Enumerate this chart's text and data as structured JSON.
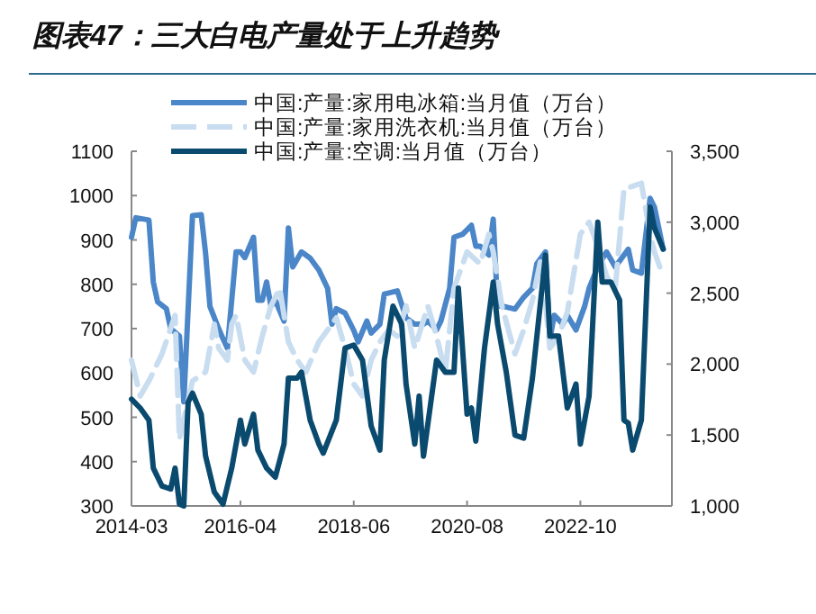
{
  "chart_data": {
    "type": "line",
    "title": "图表47：三大白电产量处于上升趋势",
    "xlim": [
      "2014-03",
      "2024-07"
    ],
    "xticks": [
      {
        "value": "2014-03",
        "label": "2014-03"
      },
      {
        "value": "2016-04",
        "label": "2016-04"
      },
      {
        "value": "2018-06",
        "label": "2018-06"
      },
      {
        "value": "2020-08",
        "label": "2020-08"
      },
      {
        "value": "2022-10",
        "label": "2022-10"
      }
    ],
    "ylim": [
      300,
      1100
    ],
    "yticks": [
      300,
      400,
      500,
      600,
      700,
      800,
      900,
      1000,
      1100
    ],
    "y2lim": [
      1000,
      3500
    ],
    "y2ticks": [
      {
        "value": 1000,
        "label": "1,000"
      },
      {
        "value": 1500,
        "label": "1,500"
      },
      {
        "value": 2000,
        "label": "2,000"
      },
      {
        "value": 2500,
        "label": "2,500"
      },
      {
        "value": 3000,
        "label": "3,000"
      },
      {
        "value": 3500,
        "label": "3,500"
      }
    ],
    "legend": "top",
    "grid": false,
    "series": [
      {
        "name": "中国:产量:家用电冰箱:当月值（万台）",
        "color": "#4a86c8",
        "line_style": "solid",
        "x": [
          "2014-03",
          "2014-04",
          "2014-07",
          "2014-08",
          "2014-09",
          "2014-11",
          "2014-12",
          "2015-02",
          "2015-03",
          "2015-05",
          "2015-07",
          "2015-08",
          "2015-09",
          "2015-11",
          "2015-12",
          "2016-01",
          "2016-03",
          "2016-04",
          "2016-05",
          "2016-07",
          "2016-08",
          "2016-09",
          "2016-10",
          "2016-11",
          "2016-12",
          "2017-02",
          "2017-03",
          "2017-04",
          "2017-06",
          "2017-08",
          "2017-10",
          "2017-12",
          "2018-01",
          "2018-02",
          "2018-04",
          "2018-06",
          "2018-07",
          "2018-09",
          "2018-10",
          "2018-12",
          "2019-01",
          "2019-04",
          "2019-06",
          "2019-08",
          "2019-10",
          "2019-11",
          "2020-01",
          "2020-02",
          "2020-04",
          "2020-05",
          "2020-07",
          "2020-09",
          "2020-10",
          "2020-11",
          "2021-01",
          "2021-02",
          "2021-03",
          "2021-04",
          "2021-07",
          "2021-09",
          "2021-11",
          "2021-12",
          "2022-02",
          "2022-03",
          "2022-04",
          "2022-06",
          "2022-07",
          "2022-09",
          "2022-11",
          "2022-12",
          "2023-02",
          "2023-04",
          "2023-06",
          "2023-09",
          "2023-10",
          "2023-12",
          "2024-02",
          "2024-03",
          "2024-05"
        ],
        "values": [
          906,
          950,
          945,
          805,
          760,
          745,
          700,
          683,
          535,
          955,
          957,
          870,
          750,
          700,
          677,
          656,
          873,
          873,
          860,
          906,
          764,
          764,
          805,
          751,
          764,
          717,
          927,
          839,
          873,
          859,
          832,
          791,
          710,
          745,
          735,
          696,
          670,
          717,
          690,
          710,
          778,
          785,
          724,
          710,
          710,
          717,
          697,
          717,
          791,
          906,
          913,
          933,
          886,
          886,
          866,
          947,
          751,
          751,
          744,
          771,
          791,
          846,
          873,
          676,
          730,
          710,
          730,
          697,
          751,
          791,
          839,
          873,
          839,
          879,
          832,
          825,
          994,
          974,
          879
        ]
      },
      {
        "name": "中国:产量:家用洗衣机:当月值（万台）",
        "color": "#c9ddf0",
        "line_style": "dashed",
        "x": [
          "2014-03",
          "2014-05",
          "2014-07",
          "2014-10",
          "2015-01",
          "2015-02",
          "2015-05",
          "2015-08",
          "2015-10",
          "2015-11",
          "2016-01",
          "2016-02",
          "2016-03",
          "2016-05",
          "2016-07",
          "2016-09",
          "2016-11",
          "2017-01",
          "2017-03",
          "2017-05",
          "2017-07",
          "2017-10",
          "2017-12",
          "2018-02",
          "2018-04",
          "2018-06",
          "2018-08",
          "2018-10",
          "2018-12",
          "2019-02",
          "2019-04",
          "2019-06",
          "2019-08",
          "2019-11",
          "2020-01",
          "2020-03",
          "2020-05",
          "2020-08",
          "2020-11",
          "2021-01",
          "2021-02",
          "2021-04",
          "2021-07",
          "2021-09",
          "2021-11",
          "2022-01",
          "2022-03",
          "2022-05",
          "2022-07",
          "2022-10",
          "2022-12",
          "2023-02",
          "2023-04",
          "2023-06",
          "2023-08",
          "2023-10",
          "2023-12",
          "2024-02",
          "2024-03",
          "2024-05"
        ],
        "values": [
          629,
          548,
          582,
          643,
          730,
          450,
          582,
          602,
          710,
          656,
          629,
          710,
          730,
          629,
          602,
          683,
          751,
          791,
          670,
          629,
          602,
          670,
          697,
          724,
          656,
          575,
          548,
          629,
          670,
          697,
          683,
          751,
          656,
          751,
          683,
          602,
          791,
          873,
          846,
          913,
          873,
          751,
          643,
          697,
          764,
          859,
          656,
          683,
          737,
          913,
          940,
          886,
          818,
          791,
          1015,
          1021,
          1028,
          913,
          873,
          818
        ]
      },
      {
        "name": "中国:产量:空调:当月值（万台）",
        "color": "#0b4a6f",
        "line_style": "solid",
        "axis": "y2",
        "x": [
          "2014-03",
          "2014-05",
          "2014-07",
          "2014-08",
          "2014-10",
          "2014-12",
          "2015-01",
          "2015-02",
          "2015-03",
          "2015-04",
          "2015-05",
          "2015-07",
          "2015-08",
          "2015-10",
          "2015-12",
          "2016-02",
          "2016-04",
          "2016-05",
          "2016-07",
          "2016-08",
          "2016-10",
          "2016-12",
          "2017-02",
          "2017-03",
          "2017-05",
          "2017-06",
          "2017-08",
          "2017-10",
          "2017-11",
          "2018-02",
          "2018-04",
          "2018-06",
          "2018-08",
          "2018-10",
          "2018-12",
          "2019-01",
          "2019-03",
          "2019-05",
          "2019-06",
          "2019-08",
          "2019-09",
          "2019-10",
          "2020-01",
          "2020-03",
          "2020-05",
          "2020-06",
          "2020-08",
          "2020-09",
          "2020-10",
          "2020-12",
          "2021-02",
          "2021-03",
          "2021-05",
          "2021-07",
          "2021-09",
          "2021-11",
          "2022-02",
          "2022-03",
          "2022-05",
          "2022-07",
          "2022-09",
          "2022-10",
          "2022-12",
          "2023-02",
          "2023-03",
          "2023-05",
          "2023-07",
          "2023-08",
          "2023-09",
          "2023-10",
          "2023-12",
          "2024-02",
          "2024-03",
          "2024-05"
        ],
        "values": [
          1753,
          1690,
          1605,
          1267,
          1140,
          1119,
          1267,
          1013,
          1000,
          1732,
          1795,
          1647,
          1352,
          1098,
          1013,
          1267,
          1605,
          1436,
          1647,
          1394,
          1267,
          1203,
          1436,
          1901,
          1901,
          1943,
          1605,
          1436,
          1372,
          1605,
          2113,
          2134,
          2028,
          1563,
          1394,
          2028,
          2409,
          2282,
          1859,
          1436,
          1774,
          1351,
          2028,
          1943,
          1943,
          2536,
          1647,
          1690,
          1457,
          2113,
          2578,
          2282,
          1943,
          1499,
          1478,
          1901,
          2768,
          2197,
          2197,
          1690,
          1859,
          1436,
          1774,
          3001,
          2578,
          2578,
          2451,
          1605,
          1584,
          1394,
          1605,
          3107,
          2959,
          2811
        ]
      }
    ]
  }
}
